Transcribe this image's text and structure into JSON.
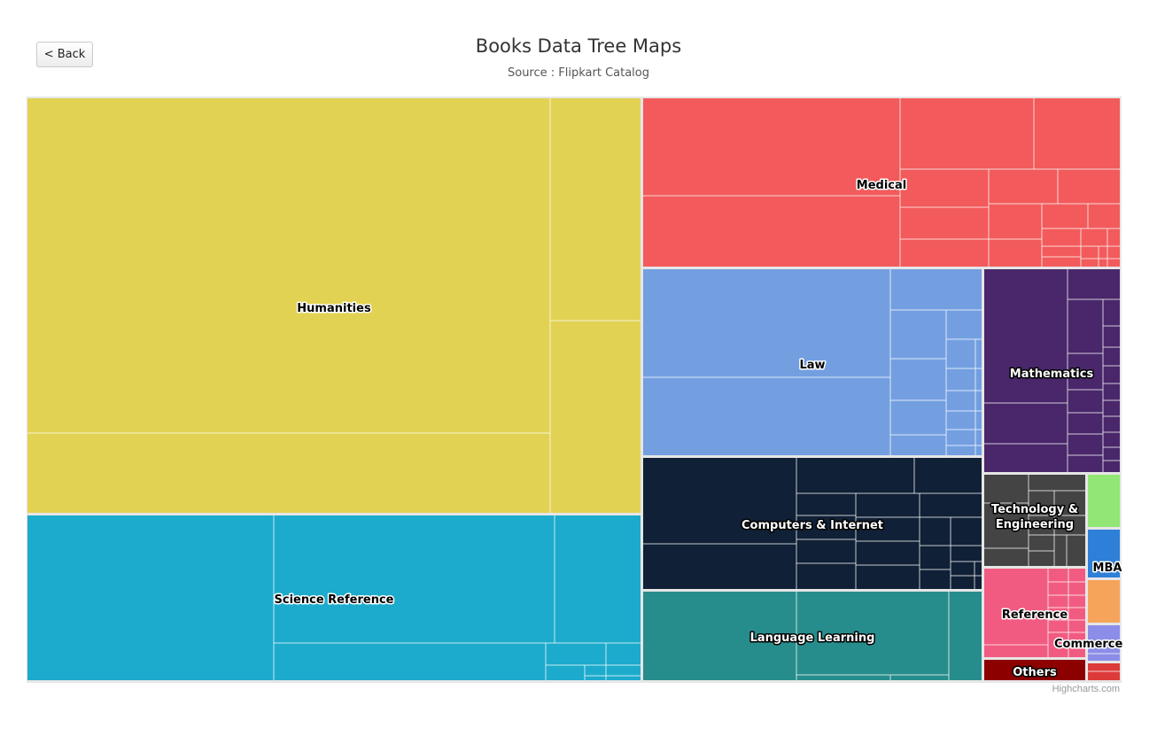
{
  "back_button": {
    "label": "< Back"
  },
  "credits": "Highcharts.com",
  "chart_data": {
    "type": "treemap",
    "title": "Books Data Tree Maps",
    "subtitle": "Source : Flipkart Catalog",
    "categories": [
      {
        "name": "Humanities",
        "color": "#e2d253",
        "value": 320
      },
      {
        "name": "Science Reference",
        "color": "#1cabcc",
        "value": 128
      },
      {
        "name": "Medical",
        "color": "#f25a5b",
        "value": 102
      },
      {
        "name": "Law",
        "color": "#739fe1",
        "value": 80
      },
      {
        "name": "Mathematics",
        "color": "#49276a",
        "value": 32
      },
      {
        "name": "Computers & Internet",
        "color": "#102036",
        "value": 56
      },
      {
        "name": "Language Learning",
        "color": "#278d8c",
        "value": 38
      },
      {
        "name": "Technology & Engineering",
        "color": "#444445",
        "value": 11
      },
      {
        "name": "Reference",
        "color": "#f25b81",
        "value": 11
      },
      {
        "name": "Others",
        "color": "#8c0000",
        "value": 2.5
      },
      {
        "name": "MBA",
        "color": "#2d7fd7",
        "value": 1.5
      },
      {
        "name": "Commerce",
        "color": "#8c8de8",
        "value": 1.2
      }
    ],
    "unlabeled_categories": [
      {
        "color": "#91e675",
        "value": 1.8
      },
      {
        "color": "#f6a45b",
        "value": 1.5
      },
      {
        "color": "#dd3a3a",
        "value": 0.8
      }
    ]
  }
}
